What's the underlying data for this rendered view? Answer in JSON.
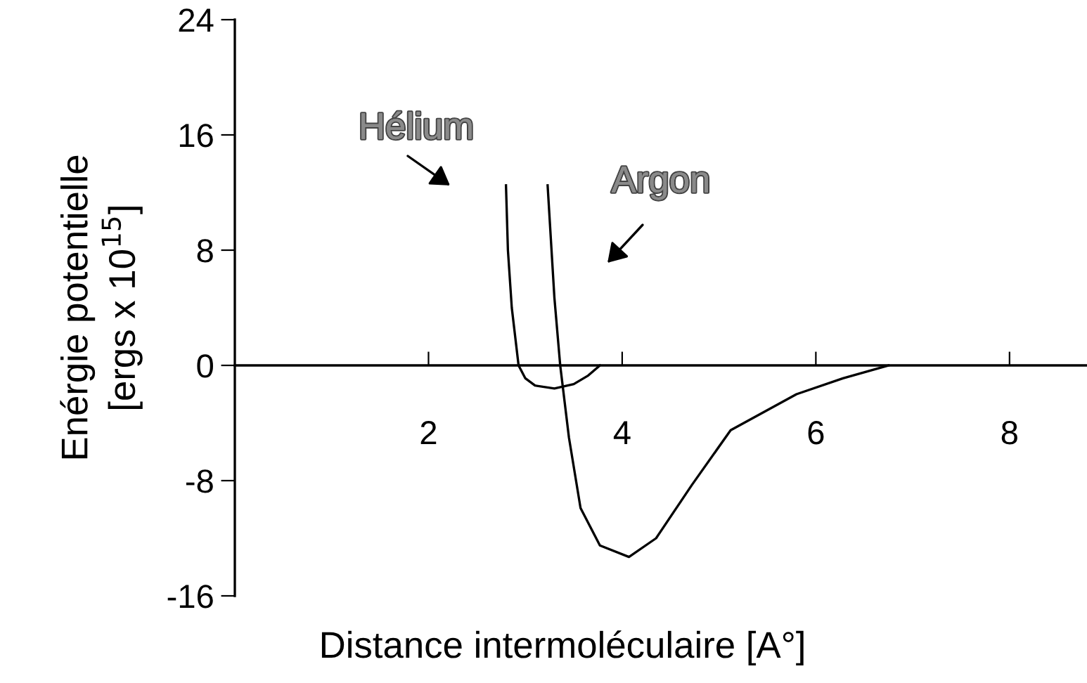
{
  "chart_data": {
    "type": "line",
    "xlabel": "Distance intermoléculaire [A°]",
    "ylabel": "Enérgie potentielle\n[ergs x 10$^{15}$]",
    "xlim": [
      0,
      8.8
    ],
    "xticks": [
      2,
      4,
      6,
      8
    ],
    "ylim": [
      -16,
      24
    ],
    "yticks": [
      -16,
      -8,
      0,
      8,
      16,
      24
    ],
    "grid": false,
    "legend": false,
    "marker": "none",
    "line_style": "solid",
    "series": [
      {
        "color": "#000000",
        "x": [
          2.8,
          2.82,
          2.86,
          2.93,
          3.0,
          3.1,
          3.3,
          3.5,
          3.65,
          3.77
        ],
        "values": [
          12.5,
          8,
          4,
          0,
          -0.9,
          -1.4,
          -1.6,
          -1.3,
          -0.7,
          0
        ]
      },
      {
        "color": "#000000",
        "x": [
          3.23,
          3.3,
          3.36,
          3.45,
          3.57,
          3.77,
          4.07,
          4.35,
          4.72,
          5.12,
          5.8,
          6.28,
          6.75
        ],
        "values": [
          12.5,
          4.7,
          0,
          -5.0,
          -9.9,
          -12.5,
          -13.3,
          -12.0,
          -8.3,
          -4.5,
          -2.0,
          -0.9,
          0
        ]
      }
    ],
    "annotations": [
      "Hélium",
      "Argon"
    ]
  }
}
